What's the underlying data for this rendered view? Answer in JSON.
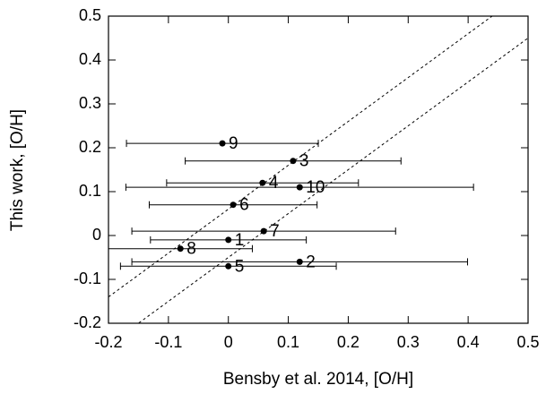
{
  "chart_data": {
    "type": "scatter",
    "x_label": "Bensby et al. 2014, [O/H]",
    "y_label": "This work, [O/H]",
    "xlim": [
      -0.2,
      0.5
    ],
    "ylim": [
      -0.2,
      0.5
    ],
    "xticks": [
      -0.2,
      -0.1,
      0,
      0.1,
      0.2,
      0.3,
      0.4,
      0.5
    ],
    "yticks": [
      -0.2,
      -0.1,
      0,
      0.1,
      0.2,
      0.3,
      0.4,
      0.5
    ],
    "series": [
      {
        "color": "#000000",
        "labels": [
          "9",
          "3",
          "4",
          "10",
          "6",
          "7",
          "1",
          "8",
          "2",
          "5"
        ],
        "x": [
          -0.01,
          0.108,
          0.057,
          0.119,
          0.008,
          0.059,
          0.0,
          -0.08,
          0.119,
          0.0
        ],
        "values": [
          0.21,
          0.17,
          0.12,
          0.11,
          0.07,
          0.01,
          -0.01,
          -0.03,
          -0.06,
          -0.07
        ],
        "xerr": [
          0.16,
          0.18,
          0.16,
          0.29,
          0.14,
          0.22,
          0.13,
          0.12,
          0.28,
          0.18
        ]
      }
    ],
    "reference_lines": [
      {
        "slope": 1,
        "intercept": 0.06
      },
      {
        "slope": 1,
        "intercept": -0.05
      }
    ]
  }
}
